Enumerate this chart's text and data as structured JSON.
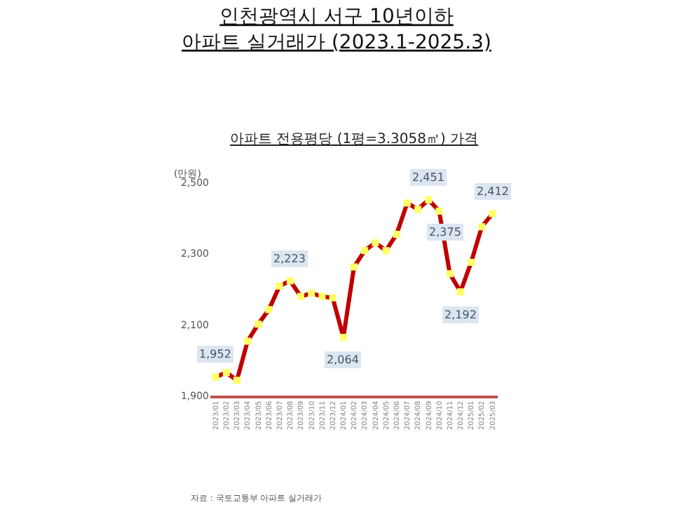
{
  "chart_data": {
    "type": "line",
    "title": "인천광역시 서구 10년이하\n아파트 실거래가 (2023.1-2025.3)",
    "subtitle": "아파트 전용평당 (1평=3.3058㎡) 가격",
    "ylabel": "(만원)",
    "categories": [
      "2023/01",
      "2023/02",
      "2023/03",
      "2023/04",
      "2023/05",
      "2023/06",
      "2023/07",
      "2023/08",
      "2023/09",
      "2023/10",
      "2023/11",
      "2023/12",
      "2024/01",
      "2024/02",
      "2024/03",
      "2024/04",
      "2024/05",
      "2024/06",
      "2024/07",
      "2024/08",
      "2024/09",
      "2024/10",
      "2024/11",
      "2024/12",
      "2025/01",
      "2025/02",
      "2025/03"
    ],
    "series": [
      {
        "color": "#c00000",
        "values": [
          1952,
          1965,
          1943,
          2053,
          2101,
          2142,
          2208,
          2223,
          2179,
          2188,
          2179,
          2175,
          2064,
          2262,
          2308,
          2330,
          2308,
          2354,
          2442,
          2424,
          2451,
          2419,
          2243,
          2192,
          2275,
          2375,
          2412
        ],
        "value_labels": [
          "1,952",
          null,
          null,
          null,
          null,
          null,
          null,
          "2,223",
          null,
          null,
          null,
          null,
          "2,064",
          null,
          null,
          null,
          null,
          null,
          null,
          null,
          "2,451",
          null,
          null,
          "2,192",
          null,
          "2,375",
          "2,412"
        ]
      }
    ],
    "marker": "square",
    "ylim": [
      1900,
      2500
    ],
    "yticks": [
      {
        "value": 1900,
        "label": "1,900"
      },
      {
        "value": 2100,
        "label": "2,100"
      },
      {
        "value": 2300,
        "label": "2,300"
      },
      {
        "value": 2500,
        "label": "2,500"
      }
    ],
    "annotations": [
      "자료 : 국토교통부 아파트 실거래가"
    ]
  }
}
